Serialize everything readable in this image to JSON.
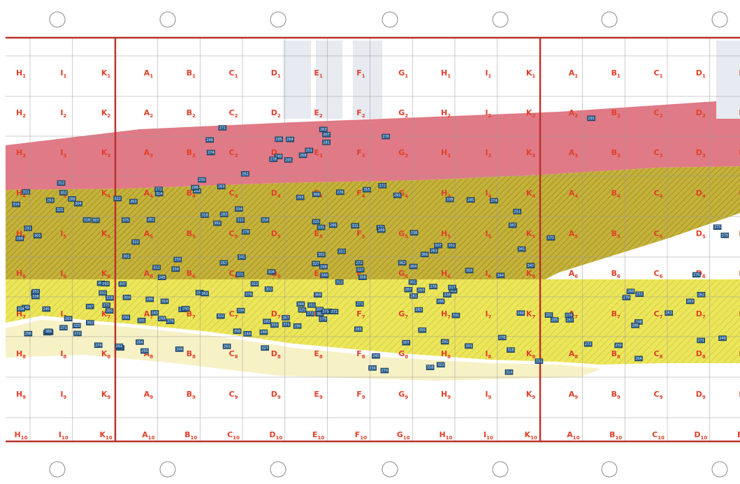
{
  "grid": {
    "rows": [
      {
        "sub": "1",
        "labels": [
          "H",
          "I",
          "K",
          "A",
          "B",
          "C",
          "D",
          "E",
          "F",
          "G",
          "H",
          "I",
          "K",
          "A",
          "B",
          "C",
          "D",
          "E"
        ]
      },
      {
        "sub": "2",
        "labels": [
          "H",
          "I",
          "K",
          "A",
          "B",
          "C",
          "D",
          "E",
          "F",
          "G",
          "H",
          "I",
          "K",
          "A",
          "B",
          "C",
          "D",
          "E"
        ]
      },
      {
        "sub": "3",
        "labels": [
          "H",
          "I",
          "K",
          "A",
          "B",
          "C",
          "D",
          "E",
          "F",
          "G",
          "H",
          "I",
          "K",
          "A",
          "B",
          "C",
          "D",
          "E"
        ]
      },
      {
        "sub": "4",
        "labels": [
          "H",
          "I",
          "K",
          "A",
          "B",
          "C",
          "D",
          "E",
          "F",
          "G",
          "H",
          "I",
          "K",
          "A",
          "B",
          "C",
          "D",
          "E"
        ]
      },
      {
        "sub": "5",
        "labels": [
          "H",
          "I",
          "K",
          "A",
          "B",
          "C",
          "D",
          "E",
          "F",
          "G",
          "H",
          "I",
          "K",
          "A",
          "B",
          "C",
          "D",
          "E"
        ]
      },
      {
        "sub": "6",
        "labels": [
          "H",
          "I",
          "K",
          "A",
          "B",
          "C",
          "D",
          "E",
          "F",
          "G",
          "H",
          "I",
          "K",
          "A",
          "B",
          "C",
          "D",
          "E"
        ]
      },
      {
        "sub": "7",
        "labels": [
          "H",
          "I",
          "K",
          "A",
          "B",
          "C",
          "D",
          "E",
          "F",
          "G",
          "H",
          "I",
          "K",
          "A",
          "B",
          "C",
          "D",
          "E"
        ]
      },
      {
        "sub": "8",
        "labels": [
          "H",
          "I",
          "K",
          "A",
          "B",
          "C",
          "D",
          "E",
          "F",
          "G",
          "H",
          "I",
          "K",
          "A",
          "B",
          "C",
          "D",
          "E"
        ]
      },
      {
        "sub": "9",
        "labels": [
          "H",
          "I",
          "K",
          "A",
          "B",
          "C",
          "D",
          "E",
          "F",
          "G",
          "H",
          "I",
          "K",
          "A",
          "B",
          "C",
          "D",
          "E"
        ]
      },
      {
        "sub": "10",
        "labels": [
          "H",
          "I",
          "K",
          "A",
          "B",
          "C",
          "D",
          "E",
          "F",
          "G",
          "H",
          "I",
          "K",
          "A",
          "B",
          "C",
          "D",
          "E"
        ]
      }
    ]
  },
  "marker_codes": [
    "245",
    "248",
    "249",
    "250",
    "251",
    "262",
    "263",
    "264",
    "267",
    "268",
    "271",
    "272",
    "274",
    "276",
    "278",
    "281",
    "283",
    "285",
    "286",
    "291",
    "293",
    "296",
    "301",
    "302",
    "304",
    "307",
    "311",
    "312",
    "314",
    "318",
    "322",
    "325",
    "327",
    "331",
    "334",
    "338",
    "341",
    "344",
    "347",
    "351",
    "355",
    "358",
    "362",
    "366",
    "371",
    "375",
    "379"
  ],
  "colors": {
    "pink_band": "#e07a86",
    "olive_band": "#c8b43a",
    "yellow_band": "#ece85a",
    "cream_band": "#f7f1c6",
    "grid_red": "#b8322a",
    "label_red": "#e0402a",
    "marker_fill": "#2a5f8c",
    "marker_border": "#0e2d4a"
  }
}
